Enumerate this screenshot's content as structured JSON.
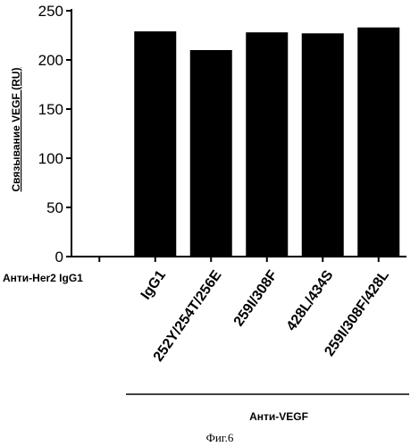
{
  "chart_data": {
    "type": "bar",
    "categories": [
      "Анти-Her2 IgG1",
      "IgG1",
      "252Y/254T/256E",
      "259I/308F",
      "428L/434S",
      "259I/308F/428L"
    ],
    "values": [
      0,
      229,
      210,
      228,
      227,
      233
    ],
    "ylabel": "Связывание VEGF (RU)",
    "ylim": [
      0,
      250
    ],
    "yticks": [
      0,
      50,
      100,
      150,
      200,
      250
    ],
    "group_label": "Анти-VEGF",
    "grid": false,
    "bar_color": "#000000"
  },
  "caption": "Фиг.6"
}
